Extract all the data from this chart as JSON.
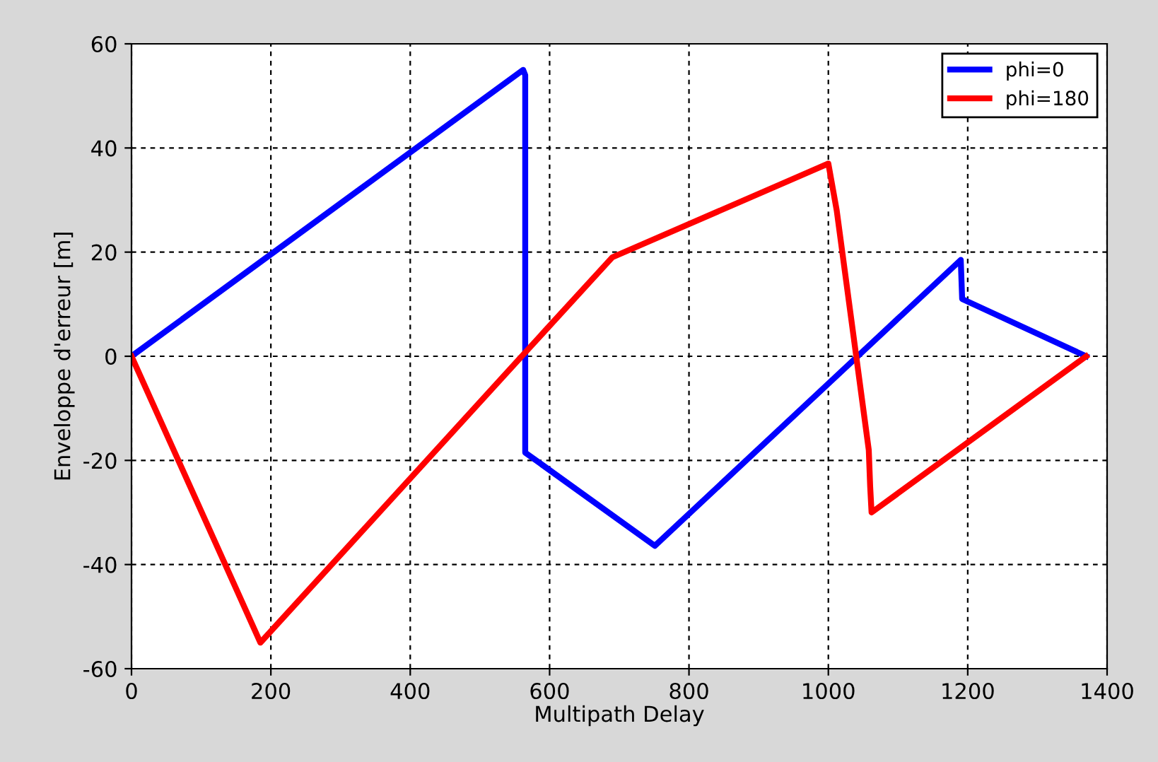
{
  "chart_data": {
    "type": "line",
    "xlabel": "Multipath Delay",
    "ylabel": "Enveloppe d'erreur [m]",
    "xlim": [
      0,
      1400
    ],
    "xticks": [
      0,
      200,
      400,
      600,
      800,
      1000,
      1200,
      1400
    ],
    "ylim": [
      -60,
      60
    ],
    "yticks": [
      -60,
      -40,
      -20,
      0,
      20,
      40,
      60
    ],
    "grid": true,
    "legend": "top right",
    "line_style": "solid",
    "marker": "none",
    "series": [
      {
        "name": "phi=0",
        "color": "#0000ff",
        "x": [
          0,
          562,
          565,
          565,
          751,
          1190,
          1192,
          1370
        ],
        "values": [
          0,
          55,
          54,
          -18.5,
          -36.4,
          18.5,
          11,
          0
        ]
      },
      {
        "name": "phi=180",
        "color": "#ff0000",
        "x": [
          0,
          185,
          560,
          690,
          1000,
          1012,
          1040,
          1058,
          1060,
          1062,
          1370
        ],
        "values": [
          0,
          -55,
          0,
          19,
          37,
          28,
          0,
          -18,
          -25,
          -30,
          0
        ]
      }
    ]
  }
}
